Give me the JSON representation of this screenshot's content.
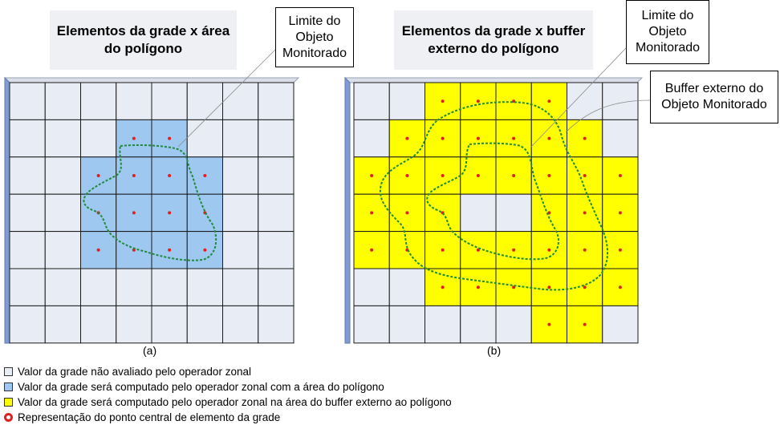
{
  "panel_a": {
    "title": "Elementos da grade x área do polígono",
    "callout": "Limite do Objeto Monitorado",
    "caption": "(a)",
    "highlighted_cells": [
      [
        1,
        3
      ],
      [
        1,
        4
      ],
      [
        2,
        2
      ],
      [
        2,
        3
      ],
      [
        2,
        4
      ],
      [
        2,
        5
      ],
      [
        3,
        2
      ],
      [
        3,
        3
      ],
      [
        3,
        4
      ],
      [
        3,
        5
      ],
      [
        4,
        2
      ],
      [
        4,
        3
      ],
      [
        4,
        4
      ],
      [
        4,
        5
      ]
    ]
  },
  "panel_b": {
    "title": "Elementos da grade x buffer externo do polígono",
    "callout_limit": "Limite do Objeto Monitorado",
    "callout_buffer": "Buffer externo do Objeto Monitorado",
    "caption": "(b)",
    "highlighted_cells": [
      [
        0,
        2
      ],
      [
        0,
        3
      ],
      [
        0,
        4
      ],
      [
        0,
        5
      ],
      [
        1,
        1
      ],
      [
        1,
        2
      ],
      [
        1,
        3
      ],
      [
        1,
        4
      ],
      [
        1,
        5
      ],
      [
        1,
        6
      ],
      [
        2,
        0
      ],
      [
        2,
        1
      ],
      [
        2,
        2
      ],
      [
        2,
        3
      ],
      [
        2,
        4
      ],
      [
        2,
        5
      ],
      [
        2,
        6
      ],
      [
        2,
        7
      ],
      [
        3,
        0
      ],
      [
        3,
        1
      ],
      [
        3,
        2
      ],
      [
        3,
        5
      ],
      [
        3,
        6
      ],
      [
        3,
        7
      ],
      [
        4,
        0
      ],
      [
        4,
        1
      ],
      [
        4,
        2
      ],
      [
        4,
        3
      ],
      [
        4,
        4
      ],
      [
        4,
        5
      ],
      [
        4,
        6
      ],
      [
        4,
        7
      ],
      [
        4,
        8
      ],
      [
        5,
        2
      ],
      [
        5,
        3
      ],
      [
        5,
        4
      ],
      [
        5,
        5
      ],
      [
        5,
        6
      ],
      [
        5,
        7
      ],
      [
        6,
        5
      ],
      [
        6,
        6
      ]
    ]
  },
  "legend": [
    {
      "label": "Valor da grade não avaliado pelo operador zonal",
      "color": "#e8edf5",
      "kind": "square"
    },
    {
      "label": "Valor da grade será computado pelo operador zonal com a área do polígono",
      "color": "#9ec8f0",
      "kind": "square"
    },
    {
      "label": "Valor da grade será computado pelo operador zonal na área do buffer externo ao polígono",
      "color": "#ffff00",
      "kind": "square"
    },
    {
      "label": "Representação do ponto central de elemento da grade",
      "color": "#e02020",
      "kind": "dot"
    }
  ],
  "colors": {
    "cell_default": "#e8edf5",
    "cell_polygon": "#9ec8f0",
    "cell_buffer": "#ffff00",
    "center_dot": "#e02020",
    "boundary_line": "#1f8a3a"
  }
}
